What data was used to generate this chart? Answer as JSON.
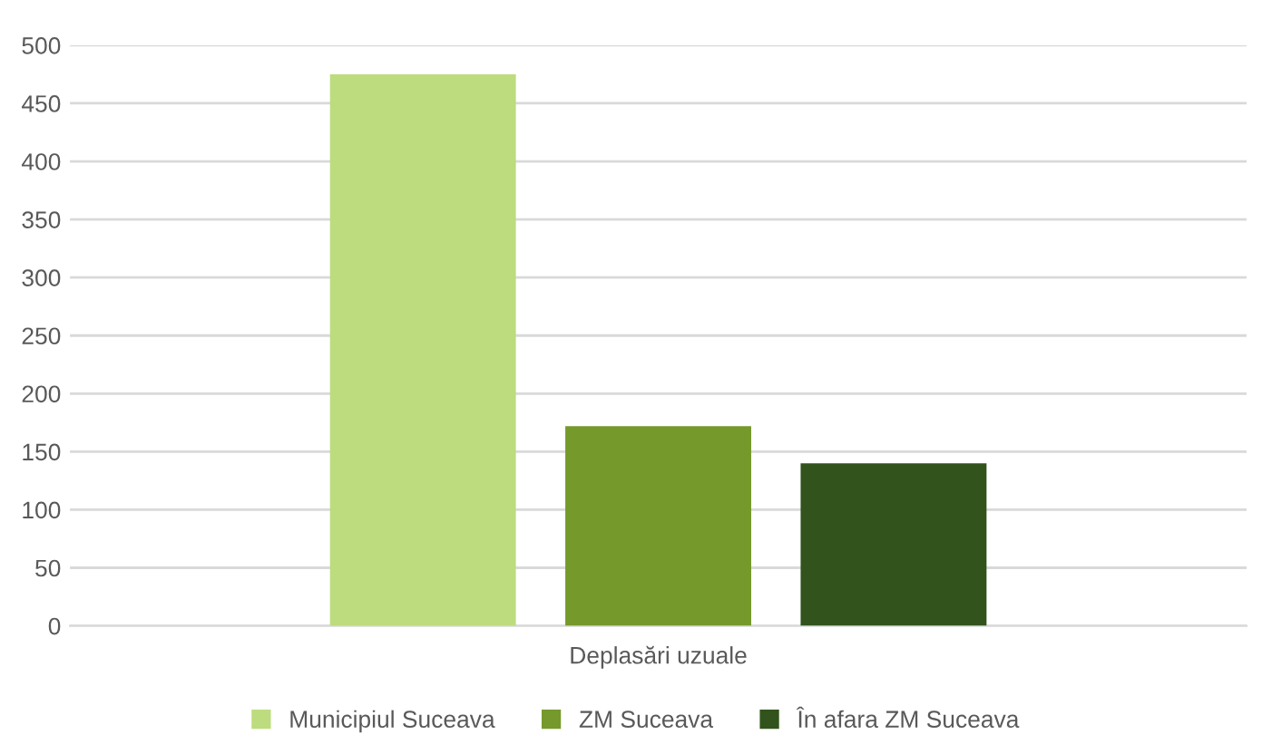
{
  "chart_data": {
    "type": "bar",
    "categories": [
      "Deplasări uzuale"
    ],
    "series": [
      {
        "name": "Municipiul Suceava",
        "color": "#bddc7e",
        "values": [
          475
        ]
      },
      {
        "name": "ZM Suceava",
        "color": "#76992b",
        "values": [
          172
        ]
      },
      {
        "name": "În afara ZM Suceava",
        "color": "#32531c",
        "values": [
          140
        ]
      }
    ],
    "ylim": [
      0,
      500
    ],
    "yticks": [
      0,
      50,
      100,
      150,
      200,
      250,
      300,
      350,
      400,
      450,
      500
    ],
    "grid": "y",
    "legend": "bottom"
  }
}
